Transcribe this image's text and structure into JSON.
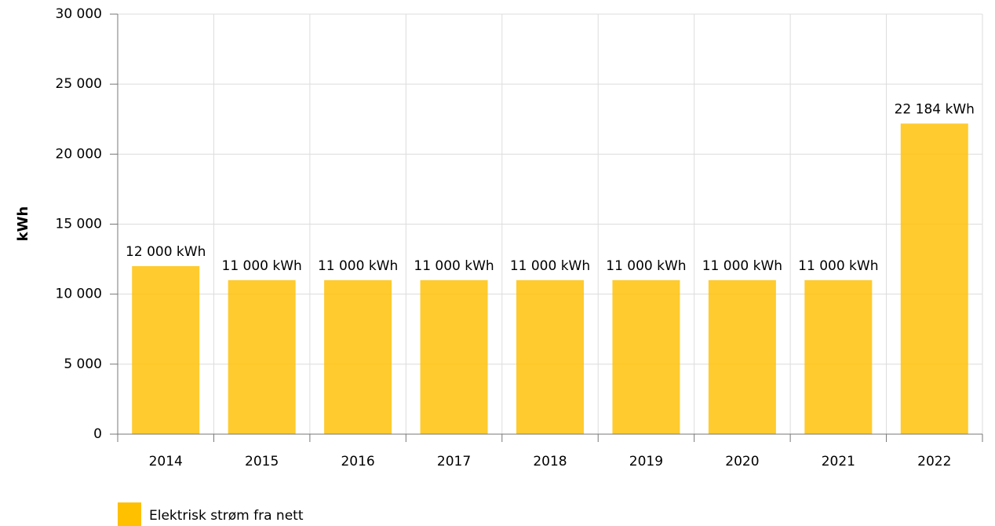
{
  "chart_data": {
    "type": "bar",
    "ylabel": "kWh",
    "categories": [
      "2014",
      "2015",
      "2016",
      "2017",
      "2018",
      "2019",
      "2020",
      "2021",
      "2022"
    ],
    "series": [
      {
        "name": "Elektrisk strøm fra nett",
        "color": "#ffc000",
        "values": [
          12000,
          11000,
          11000,
          11000,
          11000,
          11000,
          11000,
          11000,
          22184
        ],
        "value_labels": [
          "12 000 kWh",
          "11 000 kWh",
          "11 000 kWh",
          "11 000 kWh",
          "11 000 kWh",
          "11 000 kWh",
          "11 000 kWh",
          "11 000 kWh",
          "22 184 kWh"
        ]
      }
    ],
    "ylim": [
      0,
      30000
    ],
    "yticks": [
      0,
      {
        "value": 5000,
        "label": "5 000"
      },
      {
        "value": 10000,
        "label": "10 000"
      },
      {
        "value": 15000,
        "label": "15 000"
      },
      {
        "value": 20000,
        "label": "20 000"
      },
      {
        "value": 25000,
        "label": "25 000"
      },
      {
        "value": 30000,
        "label": "30 000"
      }
    ],
    "grid": true
  }
}
